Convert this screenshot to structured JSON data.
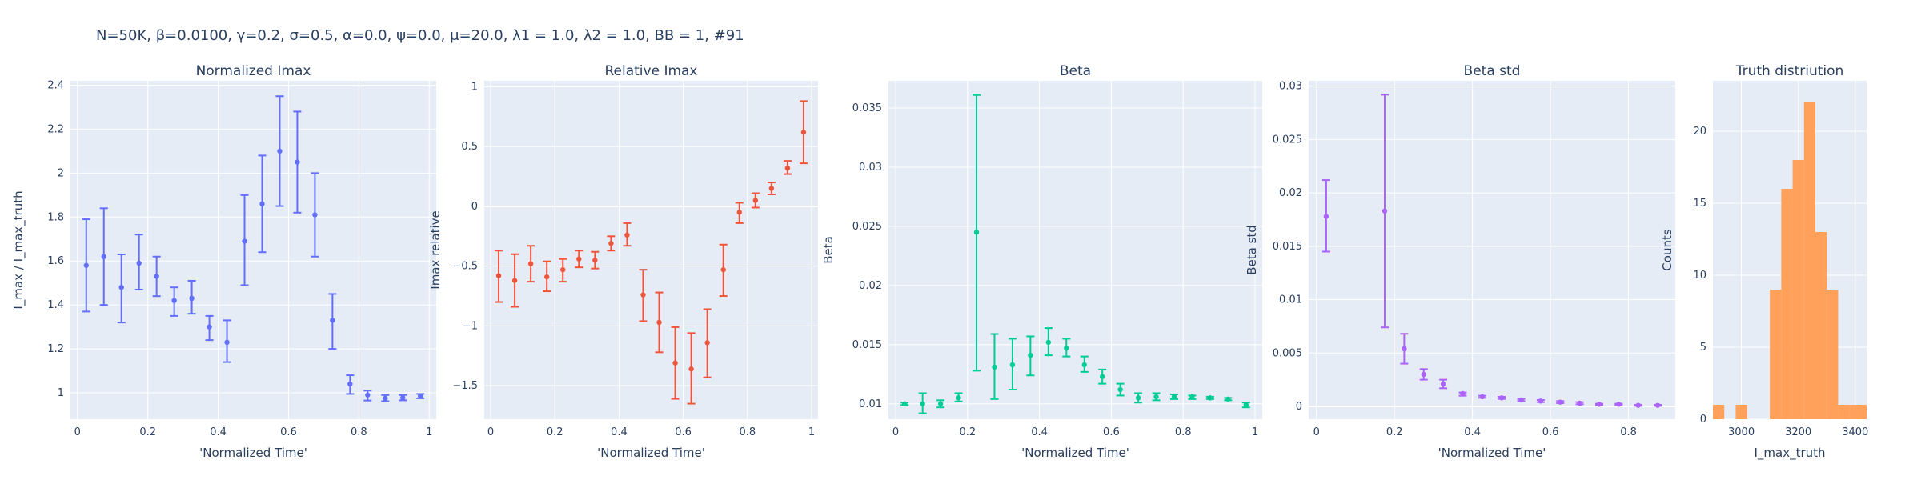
{
  "figure_title": "N=50K, β=0.0100, γ=0.2, σ=0.5,  α=0.0, ψ=0.0, μ=20.0, λ1 = 1.0, λ2 = 1.0, BB = 1, #91",
  "chart_data": [
    {
      "type": "scatter",
      "title": "Normalized Imax",
      "xlabel": "'Normalized Time'",
      "ylabel": "I_max / I_max_truth",
      "color": "#636efa",
      "xlim": [
        -0.02,
        1.02
      ],
      "ylim": [
        0.88,
        2.42
      ],
      "xticks": [
        0,
        0.2,
        0.4,
        0.6,
        0.8,
        1
      ],
      "xtick_labels": [
        "0",
        "0.2",
        "0.4",
        "0.6",
        "0.8",
        "1"
      ],
      "yticks": [
        1,
        1.2,
        1.4,
        1.6,
        1.8,
        2,
        2.2,
        2.4
      ],
      "ytick_labels": [
        "1",
        "1.2",
        "1.4",
        "1.6",
        "1.8",
        "2",
        "2.2",
        "2.4"
      ],
      "points": [
        {
          "x": 0.025,
          "y": 1.58,
          "lo": 1.37,
          "hi": 1.79
        },
        {
          "x": 0.075,
          "y": 1.62,
          "lo": 1.4,
          "hi": 1.84
        },
        {
          "x": 0.125,
          "y": 1.48,
          "lo": 1.32,
          "hi": 1.63
        },
        {
          "x": 0.175,
          "y": 1.59,
          "lo": 1.47,
          "hi": 1.72
        },
        {
          "x": 0.225,
          "y": 1.53,
          "lo": 1.44,
          "hi": 1.62
        },
        {
          "x": 0.275,
          "y": 1.42,
          "lo": 1.35,
          "hi": 1.48
        },
        {
          "x": 0.325,
          "y": 1.43,
          "lo": 1.36,
          "hi": 1.51
        },
        {
          "x": 0.375,
          "y": 1.3,
          "lo": 1.24,
          "hi": 1.35
        },
        {
          "x": 0.425,
          "y": 1.23,
          "lo": 1.14,
          "hi": 1.33
        },
        {
          "x": 0.475,
          "y": 1.69,
          "lo": 1.49,
          "hi": 1.9
        },
        {
          "x": 0.525,
          "y": 1.86,
          "lo": 1.64,
          "hi": 2.08
        },
        {
          "x": 0.575,
          "y": 2.1,
          "lo": 1.85,
          "hi": 2.35
        },
        {
          "x": 0.625,
          "y": 2.05,
          "lo": 1.82,
          "hi": 2.28
        },
        {
          "x": 0.675,
          "y": 1.81,
          "lo": 1.62,
          "hi": 2.0
        },
        {
          "x": 0.725,
          "y": 1.33,
          "lo": 1.2,
          "hi": 1.45
        },
        {
          "x": 0.775,
          "y": 1.04,
          "lo": 0.995,
          "hi": 1.08
        },
        {
          "x": 0.825,
          "y": 0.99,
          "lo": 0.965,
          "hi": 1.01
        },
        {
          "x": 0.875,
          "y": 0.975,
          "lo": 0.962,
          "hi": 0.99
        },
        {
          "x": 0.925,
          "y": 0.978,
          "lo": 0.966,
          "hi": 0.99
        },
        {
          "x": 0.975,
          "y": 0.985,
          "lo": 0.975,
          "hi": 0.995
        }
      ]
    },
    {
      "type": "scatter",
      "title": "Relative Imax",
      "xlabel": "'Normalized Time'",
      "ylabel": "Imax relative",
      "color": "#ef553b",
      "xlim": [
        -0.02,
        1.02
      ],
      "ylim": [
        -1.78,
        1.05
      ],
      "xticks": [
        0,
        0.2,
        0.4,
        0.6,
        0.8,
        1
      ],
      "xtick_labels": [
        "0",
        "0.2",
        "0.4",
        "0.6",
        "0.8",
        "1"
      ],
      "yticks": [
        -1.5,
        -1,
        -0.5,
        0,
        0.5,
        1
      ],
      "ytick_labels": [
        "−1.5",
        "−1",
        "−0.5",
        "0",
        "0.5",
        "1"
      ],
      "points": [
        {
          "x": 0.025,
          "y": -0.58,
          "lo": -0.8,
          "hi": -0.37
        },
        {
          "x": 0.075,
          "y": -0.62,
          "lo": -0.84,
          "hi": -0.4
        },
        {
          "x": 0.125,
          "y": -0.48,
          "lo": -0.63,
          "hi": -0.33
        },
        {
          "x": 0.175,
          "y": -0.59,
          "lo": -0.71,
          "hi": -0.46
        },
        {
          "x": 0.225,
          "y": -0.53,
          "lo": -0.63,
          "hi": -0.44
        },
        {
          "x": 0.275,
          "y": -0.44,
          "lo": -0.51,
          "hi": -0.37
        },
        {
          "x": 0.325,
          "y": -0.45,
          "lo": -0.52,
          "hi": -0.38
        },
        {
          "x": 0.375,
          "y": -0.31,
          "lo": -0.37,
          "hi": -0.25
        },
        {
          "x": 0.425,
          "y": -0.24,
          "lo": -0.33,
          "hi": -0.14
        },
        {
          "x": 0.475,
          "y": -0.74,
          "lo": -0.96,
          "hi": -0.53
        },
        {
          "x": 0.525,
          "y": -0.97,
          "lo": -1.22,
          "hi": -0.72
        },
        {
          "x": 0.575,
          "y": -1.31,
          "lo": -1.61,
          "hi": -1.01
        },
        {
          "x": 0.625,
          "y": -1.36,
          "lo": -1.65,
          "hi": -1.06
        },
        {
          "x": 0.675,
          "y": -1.14,
          "lo": -1.43,
          "hi": -0.86
        },
        {
          "x": 0.725,
          "y": -0.53,
          "lo": -0.75,
          "hi": -0.32
        },
        {
          "x": 0.775,
          "y": -0.05,
          "lo": -0.14,
          "hi": 0.03
        },
        {
          "x": 0.825,
          "y": 0.05,
          "lo": -0.01,
          "hi": 0.11
        },
        {
          "x": 0.875,
          "y": 0.15,
          "lo": 0.1,
          "hi": 0.2
        },
        {
          "x": 0.925,
          "y": 0.32,
          "lo": 0.27,
          "hi": 0.38
        },
        {
          "x": 0.975,
          "y": 0.62,
          "lo": 0.36,
          "hi": 0.88
        }
      ]
    },
    {
      "type": "scatter",
      "title": "Beta",
      "xlabel": "'Normalized Time'",
      "ylabel": "Beta",
      "color": "#00cc96",
      "xlim": [
        -0.02,
        1.02
      ],
      "ylim": [
        0.0087,
        0.0373
      ],
      "xticks": [
        0,
        0.2,
        0.4,
        0.6,
        0.8,
        1
      ],
      "xtick_labels": [
        "0",
        "0.2",
        "0.4",
        "0.6",
        "0.8",
        "1"
      ],
      "yticks": [
        0.01,
        0.015,
        0.02,
        0.025,
        0.03,
        0.035
      ],
      "ytick_labels": [
        "0.01",
        "0.015",
        "0.02",
        "0.025",
        "0.03",
        "0.035"
      ],
      "points": [
        {
          "x": 0.025,
          "y": 0.01,
          "lo": 0.0099,
          "hi": 0.0101
        },
        {
          "x": 0.075,
          "y": 0.01,
          "lo": 0.0092,
          "hi": 0.0109
        },
        {
          "x": 0.125,
          "y": 0.01,
          "lo": 0.0097,
          "hi": 0.0103
        },
        {
          "x": 0.175,
          "y": 0.0105,
          "lo": 0.0102,
          "hi": 0.0109
        },
        {
          "x": 0.225,
          "y": 0.0245,
          "lo": 0.0128,
          "hi": 0.0361
        },
        {
          "x": 0.275,
          "y": 0.0131,
          "lo": 0.0104,
          "hi": 0.0159
        },
        {
          "x": 0.325,
          "y": 0.0133,
          "lo": 0.0112,
          "hi": 0.0155
        },
        {
          "x": 0.375,
          "y": 0.0141,
          "lo": 0.0124,
          "hi": 0.0157
        },
        {
          "x": 0.425,
          "y": 0.0152,
          "lo": 0.0141,
          "hi": 0.0164
        },
        {
          "x": 0.475,
          "y": 0.0147,
          "lo": 0.014,
          "hi": 0.0155
        },
        {
          "x": 0.525,
          "y": 0.0133,
          "lo": 0.0127,
          "hi": 0.014
        },
        {
          "x": 0.575,
          "y": 0.0123,
          "lo": 0.0117,
          "hi": 0.0129
        },
        {
          "x": 0.625,
          "y": 0.0112,
          "lo": 0.0107,
          "hi": 0.0117
        },
        {
          "x": 0.675,
          "y": 0.0105,
          "lo": 0.0101,
          "hi": 0.0109
        },
        {
          "x": 0.725,
          "y": 0.0106,
          "lo": 0.0103,
          "hi": 0.0109
        },
        {
          "x": 0.775,
          "y": 0.0106,
          "lo": 0.0104,
          "hi": 0.0108
        },
        {
          "x": 0.825,
          "y": 0.0106,
          "lo": 0.0104,
          "hi": 0.0107
        },
        {
          "x": 0.875,
          "y": 0.0105,
          "lo": 0.0104,
          "hi": 0.0106
        },
        {
          "x": 0.925,
          "y": 0.0104,
          "lo": 0.0103,
          "hi": 0.0105
        },
        {
          "x": 0.975,
          "y": 0.0099,
          "lo": 0.0097,
          "hi": 0.0101
        }
      ]
    },
    {
      "type": "scatter",
      "title": "Beta std",
      "xlabel": "'Normalized Time'",
      "ylabel": "Beta std",
      "color": "#ab63fa",
      "xlim": [
        -0.02,
        0.92
      ],
      "ylim": [
        -0.0012,
        0.0305
      ],
      "xticks": [
        0,
        0.2,
        0.4,
        0.6,
        0.8
      ],
      "xtick_labels": [
        "0",
        "0.2",
        "0.4",
        "0.6",
        "0.8"
      ],
      "yticks": [
        0,
        0.005,
        0.01,
        0.015,
        0.02,
        0.025,
        0.03
      ],
      "ytick_labels": [
        "0",
        "0.005",
        "0.01",
        "0.015",
        "0.02",
        "0.025",
        "0.03"
      ],
      "points": [
        {
          "x": 0.025,
          "y": 0.0178,
          "lo": 0.0145,
          "hi": 0.0212
        },
        {
          "x": 0.175,
          "y": 0.0183,
          "lo": 0.0074,
          "hi": 0.0292
        },
        {
          "x": 0.225,
          "y": 0.0054,
          "lo": 0.004,
          "hi": 0.0068
        },
        {
          "x": 0.275,
          "y": 0.003,
          "lo": 0.0025,
          "hi": 0.0035
        },
        {
          "x": 0.325,
          "y": 0.0021,
          "lo": 0.0017,
          "hi": 0.0025
        },
        {
          "x": 0.375,
          "y": 0.0012,
          "lo": 0.001,
          "hi": 0.0013
        },
        {
          "x": 0.425,
          "y": 0.0009,
          "lo": 0.0008,
          "hi": 0.001
        },
        {
          "x": 0.475,
          "y": 0.0008,
          "lo": 0.0007,
          "hi": 0.0009
        },
        {
          "x": 0.525,
          "y": 0.0006,
          "lo": 0.0005,
          "hi": 0.0007
        },
        {
          "x": 0.575,
          "y": 0.0005,
          "lo": 0.0004,
          "hi": 0.0006
        },
        {
          "x": 0.625,
          "y": 0.0004,
          "lo": 0.0003,
          "hi": 0.0005
        },
        {
          "x": 0.675,
          "y": 0.0003,
          "lo": 0.0002,
          "hi": 0.0004
        },
        {
          "x": 0.725,
          "y": 0.0002,
          "lo": 0.00015,
          "hi": 0.00025
        },
        {
          "x": 0.775,
          "y": 0.0002,
          "lo": 0.00015,
          "hi": 0.00025
        },
        {
          "x": 0.825,
          "y": 0.0001,
          "lo": 5e-05,
          "hi": 0.00015
        },
        {
          "x": 0.875,
          "y": 0.0001,
          "lo": 5e-05,
          "hi": 0.00015
        }
      ]
    },
    {
      "type": "bar",
      "title": "Truth distriution",
      "xlabel": "I_max_truth",
      "ylabel": "Counts",
      "color": "#ffa15a",
      "xlim": [
        2900,
        3440
      ],
      "ylim": [
        0,
        23.5
      ],
      "xticks": [
        3000,
        3200,
        3400
      ],
      "xtick_labels": [
        "3000",
        "3200",
        "3400"
      ],
      "yticks": [
        0,
        5,
        10,
        15,
        20
      ],
      "ytick_labels": [
        "0",
        "5",
        "10",
        "15",
        "20"
      ],
      "bins": [
        {
          "x0": 2900,
          "x1": 2940,
          "count": 1
        },
        {
          "x0": 2940,
          "x1": 2980,
          "count": 0
        },
        {
          "x0": 2980,
          "x1": 3020,
          "count": 1
        },
        {
          "x0": 3020,
          "x1": 3060,
          "count": 0
        },
        {
          "x0": 3060,
          "x1": 3100,
          "count": 0
        },
        {
          "x0": 3100,
          "x1": 3140,
          "count": 9
        },
        {
          "x0": 3140,
          "x1": 3180,
          "count": 16
        },
        {
          "x0": 3180,
          "x1": 3220,
          "count": 18
        },
        {
          "x0": 3220,
          "x1": 3260,
          "count": 22
        },
        {
          "x0": 3260,
          "x1": 3300,
          "count": 13
        },
        {
          "x0": 3300,
          "x1": 3340,
          "count": 9
        },
        {
          "x0": 3340,
          "x1": 3380,
          "count": 1
        },
        {
          "x0": 3380,
          "x1": 3440,
          "count": 1
        }
      ]
    }
  ]
}
